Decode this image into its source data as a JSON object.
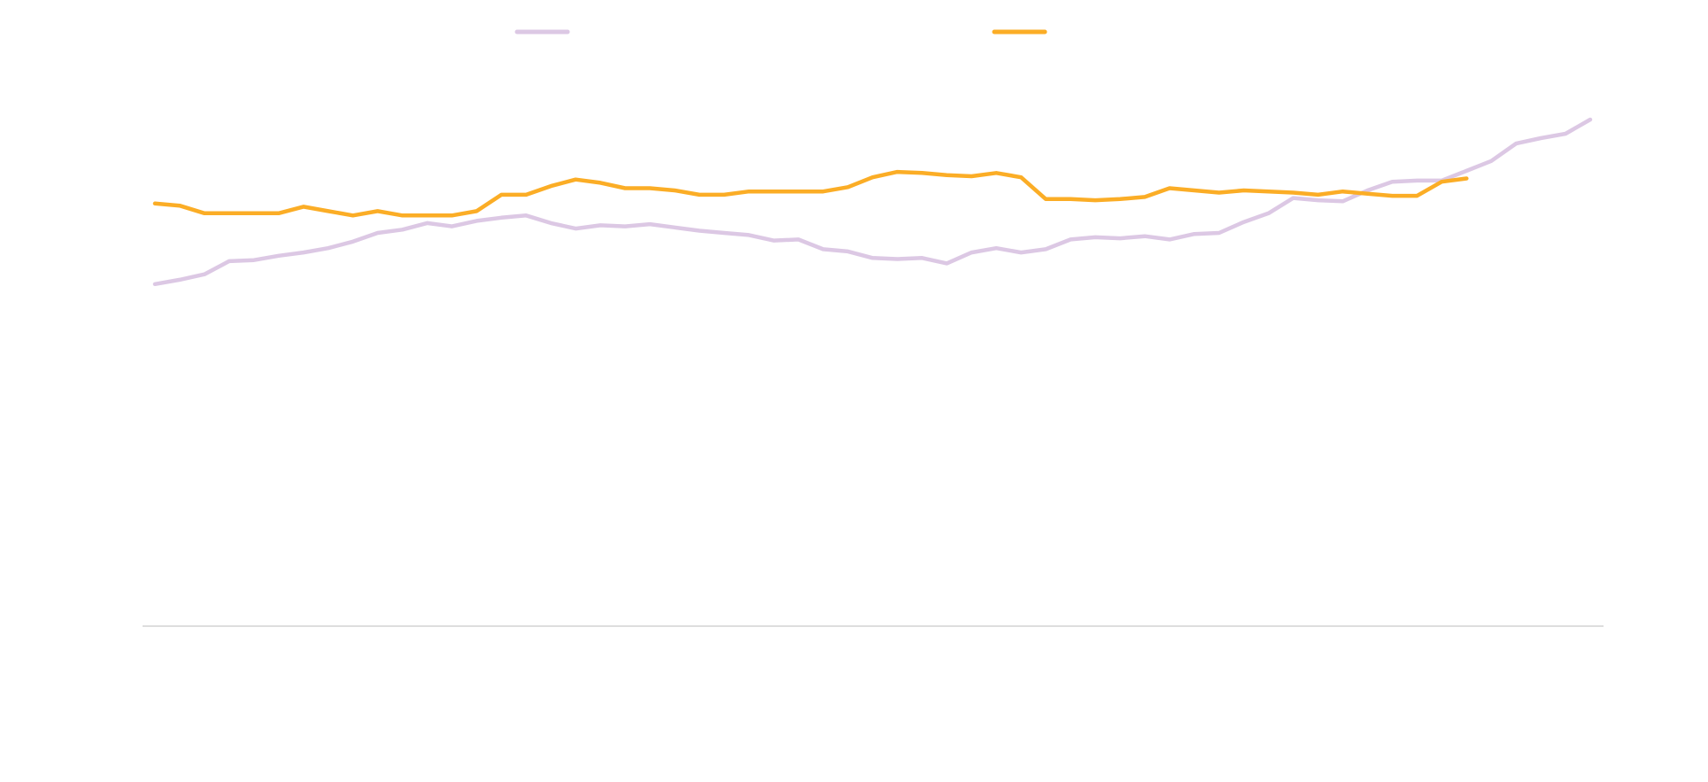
{
  "chart_data": {
    "type": "line",
    "categories": [
      null,
      null,
      null,
      null,
      null,
      null,
      null,
      null,
      null,
      null,
      null,
      null,
      null,
      null,
      null,
      null,
      null,
      null,
      null,
      null,
      null,
      null,
      null,
      null,
      null,
      null,
      null,
      null,
      null,
      null,
      null,
      null,
      null,
      null,
      null,
      null,
      null,
      null,
      null,
      null,
      null,
      null,
      null,
      null,
      null,
      null,
      null,
      null,
      null,
      null,
      null,
      null,
      null,
      null,
      null,
      null,
      null,
      null,
      null
    ],
    "series": [
      {
        "color": "#dcc8e4",
        "values": [
          62.8,
          63.6,
          64.6,
          67,
          67.2,
          68,
          68.6,
          69.4,
          70.6,
          72.2,
          72.8,
          74,
          73.4,
          74.4,
          75,
          75.4,
          74,
          73,
          73.6,
          73.4,
          73.8,
          73.2,
          72.6,
          72.2,
          71.8,
          70.8,
          71,
          69.2,
          68.8,
          67.6,
          67.4,
          67.6,
          66.6,
          68.6,
          69.4,
          68.6,
          69.2,
          71,
          71.4,
          71.2,
          71.6,
          71,
          72,
          72.2,
          74.2,
          75.8,
          78.6,
          78.2,
          78,
          80,
          81.6,
          81.8,
          81.8,
          83.6,
          85.4,
          88.6,
          89.6,
          90.4,
          93
        ]
      },
      {
        "color": "#fbad26",
        "values": [
          77.6,
          77.2,
          75.8,
          75.8,
          75.8,
          75.8,
          77,
          76.2,
          75.4,
          76.2,
          75.4,
          75.4,
          75.4,
          76.2,
          79.2,
          79.2,
          80.8,
          82,
          81.4,
          80.4,
          80.4,
          80,
          79.2,
          79.2,
          79.8,
          79.8,
          79.8,
          79.8,
          80.6,
          82.4,
          83.4,
          83.2,
          82.8,
          82.6,
          83.2,
          82.4,
          78.4,
          78.4,
          78.2,
          78.4,
          78.8,
          80.4,
          80,
          79.6,
          80,
          79.8,
          79.6,
          79.2,
          79.8,
          79.4,
          79,
          79,
          81.6,
          82.2,
          null,
          null,
          null,
          null,
          null
        ]
      }
    ],
    "ylim": [
      0,
      100
    ]
  }
}
